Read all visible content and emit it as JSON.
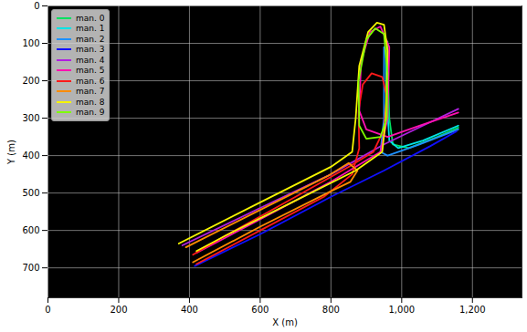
{
  "chart_data": {
    "type": "line",
    "x_label": "X (m)",
    "y_label": "Y (m)",
    "xlim": [
      0,
      1340
    ],
    "ylim": [
      780,
      0
    ],
    "xticks": [
      0,
      200,
      400,
      600,
      800,
      1000,
      1200
    ],
    "yticks": [
      0,
      100,
      200,
      300,
      400,
      500,
      600,
      700
    ],
    "grid": true,
    "legend": "upper left",
    "series": [
      {
        "name": "man. 0",
        "color": "#00e060",
        "x": [
          960,
          962,
          965,
          975,
          1020,
          1100,
          1160
        ],
        "y": [
          95,
          200,
          300,
          370,
          380,
          350,
          325
        ]
      },
      {
        "name": "man. 1",
        "color": "#00e5e5",
        "x": [
          1160,
          1060,
          990,
          965,
          958,
          955
        ],
        "y": [
          320,
          360,
          380,
          360,
          250,
          120
        ]
      },
      {
        "name": "man. 2",
        "color": "#1e90ff",
        "x": [
          1160,
          1050,
          960,
          940,
          950,
          950
        ],
        "y": [
          330,
          370,
          400,
          390,
          300,
          110
        ]
      },
      {
        "name": "man. 3",
        "color": "#1010ff",
        "x": [
          415,
          600,
          800,
          950,
          1080,
          1155
        ],
        "y": [
          695,
          610,
          510,
          440,
          375,
          335
        ]
      },
      {
        "name": "man. 4",
        "color": "#b020e0",
        "x": [
          380,
          600,
          800,
          950,
          1060,
          1160
        ],
        "y": [
          640,
          540,
          450,
          370,
          320,
          275
        ]
      },
      {
        "name": "man. 5",
        "color": "#ff10b0",
        "x": [
          1160,
          1050,
          960,
          900,
          880,
          885,
          910,
          940,
          965,
          960,
          940,
          800,
          600,
          420
        ],
        "y": [
          285,
          320,
          350,
          330,
          280,
          150,
          70,
          55,
          110,
          300,
          390,
          470,
          570,
          660
        ]
      },
      {
        "name": "man. 6",
        "color": "#ff1a1a",
        "x": [
          420,
          600,
          780,
          860,
          880,
          878,
          890,
          915,
          945,
          958,
          950,
          920,
          850,
          700,
          500,
          410
        ],
        "y": [
          690,
          600,
          510,
          450,
          380,
          280,
          210,
          180,
          190,
          240,
          330,
          390,
          430,
          510,
          615,
          665
        ]
      },
      {
        "name": "man. 7",
        "color": "#ff8c00",
        "x": [
          390,
          600,
          790,
          850,
          875,
          855,
          800,
          600,
          410
        ],
        "y": [
          645,
          545,
          455,
          420,
          440,
          470,
          495,
          590,
          685
        ]
      },
      {
        "name": "man. 8",
        "color": "#f5f500",
        "x": [
          370,
          600,
          800,
          860,
          870,
          880,
          905,
          930,
          950,
          960,
          955,
          945,
          870,
          700,
          500,
          420
        ],
        "y": [
          635,
          525,
          430,
          390,
          300,
          160,
          70,
          45,
          50,
          120,
          300,
          390,
          440,
          520,
          615,
          655
        ]
      },
      {
        "name": "man. 9",
        "color": "#7fff00",
        "x": [
          880,
          878,
          900,
          925,
          950,
          960,
          958,
          940,
          900,
          880
        ],
        "y": [
          320,
          200,
          90,
          60,
          75,
          180,
          300,
          350,
          355,
          320
        ]
      }
    ]
  }
}
